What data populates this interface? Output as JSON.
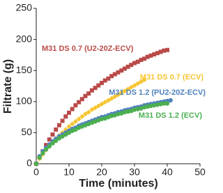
{
  "chart_data": {
    "type": "scatter",
    "x_label": "Time (minutes)",
    "y_label": "Filtrate (g)",
    "xlim": [
      0,
      50
    ],
    "xticks": [
      0,
      10,
      20,
      30,
      40,
      50
    ],
    "ylim": [
      0,
      250
    ],
    "yticks": [
      0,
      50,
      100,
      150,
      200,
      250
    ],
    "series": [
      {
        "name": "M31 DS 0.7 (U2-20Z-ECV)",
        "color": "#b94a48",
        "marker": "square",
        "x": [
          0,
          1,
          2,
          3,
          4,
          5,
          6,
          7,
          8,
          9,
          10,
          11,
          12,
          13,
          14,
          15,
          16,
          17,
          18,
          19,
          20,
          21,
          22,
          23,
          24,
          25,
          26,
          27,
          28,
          29,
          30,
          31,
          32,
          33,
          34,
          35,
          36,
          37,
          38,
          39,
          40
        ],
        "values": [
          0,
          10,
          20,
          30,
          39,
          47,
          55,
          62,
          69,
          76,
          82,
          88,
          94,
          99,
          104,
          109,
          113,
          118,
          122,
          126,
          130,
          134,
          137,
          141,
          144,
          147,
          150,
          153,
          156,
          159,
          162,
          164,
          167,
          169,
          172,
          174,
          176,
          178,
          180,
          182,
          183
        ]
      },
      {
        "name": "M31 DS 0.7 (ECV)",
        "color": "#f7c531",
        "marker": "diamond",
        "x": [
          0,
          1,
          2,
          3,
          4,
          5,
          6,
          7,
          8,
          9,
          10,
          11,
          12,
          13,
          14,
          15,
          16,
          17,
          18,
          19,
          20,
          21,
          22,
          23,
          24,
          25,
          26,
          27,
          28,
          29,
          30,
          31,
          32,
          33
        ],
        "values": [
          0,
          8,
          15,
          22,
          28,
          34,
          40,
          45,
          50,
          55,
          60,
          64,
          68,
          72,
          76,
          80,
          83,
          87,
          90,
          93,
          96,
          99,
          102,
          105,
          108,
          111,
          114,
          117,
          120,
          123,
          126,
          129,
          132,
          135
        ]
      },
      {
        "name": "M31 DS 1.2 (PU2-20Z-ECV)",
        "color": "#4f81bd",
        "marker": "circle",
        "x": [
          0,
          1,
          2,
          3,
          4,
          5,
          6,
          7,
          8,
          9,
          10,
          11,
          12,
          13,
          14,
          15,
          16,
          17,
          18,
          19,
          20,
          21,
          22,
          23,
          24,
          25,
          26,
          27,
          28,
          29,
          30,
          31,
          32,
          33,
          34,
          35,
          36,
          37,
          38,
          39,
          40,
          41
        ],
        "values": [
          0,
          12,
          20,
          26,
          31,
          36,
          40,
          44,
          47,
          50,
          53,
          56,
          58,
          61,
          63,
          65,
          67,
          69,
          71,
          73,
          75,
          76,
          78,
          80,
          81,
          83,
          84,
          86,
          87,
          88,
          90,
          91,
          92,
          94,
          95,
          96,
          97,
          98,
          99,
          100,
          101,
          102
        ]
      },
      {
        "name": "M31 DS 1.2 (ECV)",
        "color": "#4caf50",
        "marker": "circle",
        "x": [
          0,
          1,
          2,
          3,
          4,
          5,
          6,
          7,
          8,
          9,
          10,
          11,
          12,
          13,
          14,
          15,
          16,
          17,
          18,
          19,
          20,
          21,
          22,
          23,
          24,
          25,
          26,
          27,
          28,
          29,
          30,
          31,
          32,
          33,
          34,
          35,
          36,
          37,
          38,
          39,
          40
        ],
        "values": [
          0,
          10,
          17,
          23,
          28,
          33,
          37,
          41,
          44,
          47,
          50,
          53,
          55,
          58,
          60,
          62,
          64,
          66,
          68,
          70,
          72,
          73,
          75,
          77,
          78,
          80,
          81,
          83,
          84,
          85,
          87,
          88,
          89,
          91,
          92,
          93,
          94,
          95,
          96,
          97,
          97
        ]
      }
    ]
  }
}
